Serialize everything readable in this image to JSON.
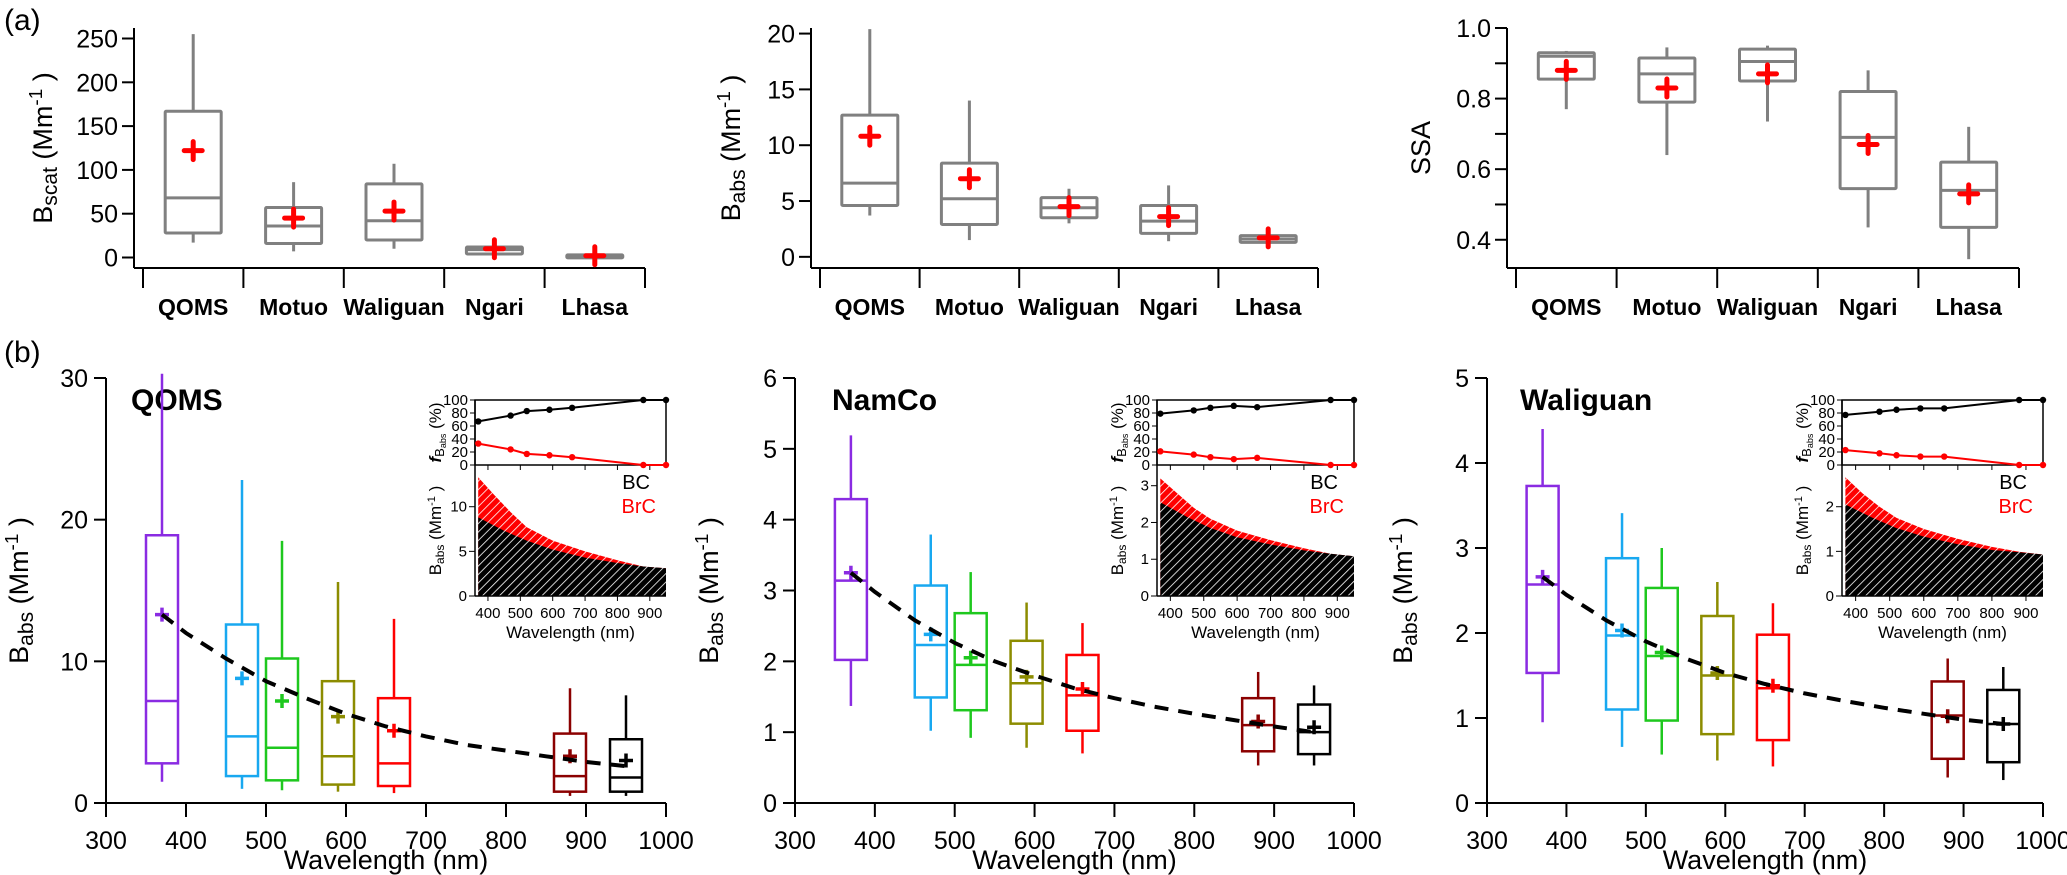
{
  "panel_labels": {
    "a": "(a)",
    "b": "(b)"
  },
  "colors": {
    "box_gray": "#808080",
    "mean_red": "#ff0000",
    "wl_colors": [
      "#8a2be2",
      "#18a8f0",
      "#1ec81e",
      "#8c8c00",
      "#ff0000",
      "#8b0000",
      "#000000"
    ],
    "bc": "#000000",
    "brc": "#ff0000"
  },
  "chart_data": [
    {
      "id": "a1",
      "type": "box",
      "ylabel_main": "B",
      "ylabel_sub": "scat",
      "ylabel_unit": " (Mm",
      "ylabel_sup": "-1",
      "ylabel_close": ")",
      "categories": [
        "QOMS",
        "Motuo",
        "Waliguan",
        "Ngari",
        "Lhasa"
      ],
      "ylim": [
        -12,
        262
      ],
      "yticks": [
        0,
        50,
        100,
        150,
        200,
        250
      ],
      "yticklabels": [
        "0",
        "50",
        "100",
        "150",
        "200",
        "250"
      ],
      "boxes": [
        {
          "min": 17,
          "q1": 28,
          "median": 68,
          "q3": 167,
          "max": 255,
          "mean": 122
        },
        {
          "min": 7,
          "q1": 16,
          "median": 36,
          "q3": 57,
          "max": 86,
          "mean": 45
        },
        {
          "min": 10,
          "q1": 20,
          "median": 42,
          "q3": 84,
          "max": 107,
          "mean": 53
        },
        {
          "min": 2,
          "q1": 4,
          "median": 9,
          "q3": 12,
          "max": 17,
          "mean": 10
        },
        {
          "min": 0.5,
          "q1": 1,
          "median": 2,
          "q3": 3,
          "max": 5,
          "mean": 2
        }
      ]
    },
    {
      "id": "a2",
      "type": "box",
      "ylabel_main": "B",
      "ylabel_sub": "abs",
      "ylabel_unit": " (Mm",
      "ylabel_sup": "-1",
      "ylabel_close": ")",
      "categories": [
        "QOMS",
        "Motuo",
        "Waliguan",
        "Ngari",
        "Lhasa"
      ],
      "ylim": [
        -1,
        20.5
      ],
      "yticks": [
        0,
        5,
        10,
        15,
        20
      ],
      "yticklabels": [
        "0",
        "5",
        "10",
        "15",
        "20"
      ],
      "boxes": [
        {
          "min": 3.7,
          "q1": 4.6,
          "median": 6.6,
          "q3": 12.7,
          "max": 20.4,
          "mean": 10.8
        },
        {
          "min": 1.5,
          "q1": 2.9,
          "median": 5.2,
          "q3": 8.4,
          "max": 14.0,
          "mean": 7.0
        },
        {
          "min": 3.0,
          "q1": 3.5,
          "median": 4.4,
          "q3": 5.3,
          "max": 6.1,
          "mean": 4.5
        },
        {
          "min": 1.4,
          "q1": 2.1,
          "median": 3.2,
          "q3": 4.6,
          "max": 6.4,
          "mean": 3.6
        },
        {
          "min": 1.2,
          "q1": 1.3,
          "median": 1.6,
          "q3": 1.9,
          "max": 2.4,
          "mean": 1.7
        }
      ]
    },
    {
      "id": "a3",
      "type": "box",
      "ylabel_main": "SSA",
      "ylabel_sub": "",
      "ylabel_unit": "",
      "ylabel_sup": "",
      "ylabel_close": "",
      "categories": [
        "QOMS",
        "Motuo",
        "Waliguan",
        "Ngari",
        "Lhasa"
      ],
      "ylim": [
        0.32,
        1.0
      ],
      "yticks": [
        0.4,
        0.5,
        0.6,
        0.7,
        0.8,
        0.9,
        1.0
      ],
      "yticklabels": [
        "0.4",
        "",
        "0.6",
        "",
        "0.8",
        "",
        "1.0"
      ],
      "boxes": [
        {
          "min": 0.77,
          "q1": 0.855,
          "median": 0.92,
          "q3": 0.93,
          "max": 0.935,
          "mean": 0.88
        },
        {
          "min": 0.64,
          "q1": 0.79,
          "median": 0.87,
          "q3": 0.915,
          "max": 0.945,
          "mean": 0.83
        },
        {
          "min": 0.735,
          "q1": 0.85,
          "median": 0.905,
          "q3": 0.94,
          "max": 0.95,
          "mean": 0.87
        },
        {
          "min": 0.435,
          "q1": 0.545,
          "median": 0.69,
          "q3": 0.82,
          "max": 0.88,
          "mean": 0.67
        },
        {
          "min": 0.345,
          "q1": 0.435,
          "median": 0.54,
          "q3": 0.62,
          "max": 0.72,
          "mean": 0.53
        }
      ]
    },
    {
      "id": "b1",
      "type": "box",
      "site": "QOMS",
      "xlabel": "Wavelength (nm)",
      "ylabel_main": "B",
      "ylabel_sub": "abs",
      "ylabel_unit": " (Mm",
      "ylabel_sup": "-1",
      "ylabel_close": ")",
      "xlim": [
        300,
        1000
      ],
      "xticks": [
        300,
        400,
        500,
        600,
        700,
        800,
        900,
        1000
      ],
      "ylim": [
        0,
        30
      ],
      "yticks": [
        0,
        10,
        20,
        30
      ],
      "wavelengths": [
        370,
        470,
        520,
        590,
        660,
        880,
        950
      ],
      "boxes": [
        {
          "min": 1.5,
          "q1": 2.8,
          "median": 7.2,
          "q3": 18.9,
          "max": 30.3,
          "mean": 13.3
        },
        {
          "min": 1.0,
          "q1": 1.9,
          "median": 4.7,
          "q3": 12.6,
          "max": 22.8,
          "mean": 8.8
        },
        {
          "min": 0.9,
          "q1": 1.6,
          "median": 3.9,
          "q3": 10.2,
          "max": 18.5,
          "mean": 7.2
        },
        {
          "min": 0.8,
          "q1": 1.3,
          "median": 3.3,
          "q3": 8.6,
          "max": 15.6,
          "mean": 6.1
        },
        {
          "min": 0.7,
          "q1": 1.2,
          "median": 2.8,
          "q3": 7.4,
          "max": 13.0,
          "mean": 5.1
        },
        {
          "min": 0.5,
          "q1": 0.8,
          "median": 1.9,
          "q3": 4.9,
          "max": 8.1,
          "mean": 3.3
        },
        {
          "min": 0.5,
          "q1": 0.8,
          "median": 1.8,
          "q3": 4.5,
          "max": 7.6,
          "mean": 3.0
        }
      ],
      "fit_curve": [
        [
          370,
          13.3
        ],
        [
          400,
          12.0
        ],
        [
          450,
          10.2
        ],
        [
          500,
          8.6
        ],
        [
          550,
          7.4
        ],
        [
          600,
          6.3
        ],
        [
          650,
          5.4
        ],
        [
          700,
          4.7
        ],
        [
          750,
          4.1
        ],
        [
          800,
          3.7
        ],
        [
          850,
          3.3
        ],
        [
          900,
          2.9
        ],
        [
          950,
          2.6
        ]
      ],
      "inset": {
        "xlim": [
          360,
          950
        ],
        "xticks": [
          400,
          500,
          600,
          700,
          800,
          900
        ],
        "xlabel": "Wavelength (nm)",
        "f_ylabel": "f",
        "f_ylabel_sub": "B",
        "f_ylabel_subsub": "abs",
        "f_ylabel_unit": " (%)",
        "f_ylim": [
          0,
          100
        ],
        "f_yticks": [
          0,
          20,
          40,
          60,
          80,
          100
        ],
        "f_bc": [
          [
            370,
            67
          ],
          [
            470,
            76
          ],
          [
            520,
            83
          ],
          [
            590,
            85
          ],
          [
            660,
            88
          ],
          [
            880,
            100
          ],
          [
            950,
            100
          ]
        ],
        "f_brc": [
          [
            370,
            33
          ],
          [
            470,
            24
          ],
          [
            520,
            17
          ],
          [
            590,
            15
          ],
          [
            660,
            12
          ],
          [
            880,
            0
          ],
          [
            950,
            0
          ]
        ],
        "b_ylim": [
          0,
          14
        ],
        "b_yticks": [
          0,
          5,
          10
        ],
        "bc_curve": [
          [
            370,
            8.8
          ],
          [
            450,
            7.3
          ],
          [
            520,
            6.2
          ],
          [
            600,
            5.2
          ],
          [
            700,
            4.3
          ],
          [
            800,
            3.7
          ],
          [
            880,
            3.3
          ],
          [
            950,
            3.1
          ]
        ],
        "total_curve": [
          [
            370,
            13.3
          ],
          [
            420,
            11.3
          ],
          [
            470,
            9.4
          ],
          [
            520,
            7.7
          ],
          [
            600,
            6.2
          ],
          [
            700,
            5.0
          ],
          [
            800,
            4.0
          ],
          [
            880,
            3.3
          ],
          [
            950,
            3.1
          ]
        ],
        "legend_bc": "BC",
        "legend_brc": "BrC"
      }
    },
    {
      "id": "b2",
      "type": "box",
      "site": "NamCo",
      "xlabel": "Wavelength (nm)",
      "ylabel_main": "B",
      "ylabel_sub": "abs",
      "ylabel_unit": " (Mm",
      "ylabel_sup": "-1",
      "ylabel_close": ")",
      "xlim": [
        300,
        1000
      ],
      "xticks": [
        300,
        400,
        500,
        600,
        700,
        800,
        900,
        1000
      ],
      "ylim": [
        0,
        6
      ],
      "yticks": [
        0,
        1,
        2,
        3,
        4,
        5,
        6
      ],
      "wavelengths": [
        370,
        470,
        520,
        590,
        660,
        880,
        950
      ],
      "boxes": [
        {
          "min": 1.37,
          "q1": 2.02,
          "median": 3.14,
          "q3": 4.29,
          "max": 5.19,
          "mean": 3.25
        },
        {
          "min": 1.02,
          "q1": 1.49,
          "median": 2.23,
          "q3": 3.07,
          "max": 3.79,
          "mean": 2.38
        },
        {
          "min": 0.92,
          "q1": 1.31,
          "median": 1.95,
          "q3": 2.68,
          "max": 3.26,
          "mean": 2.05
        },
        {
          "min": 0.78,
          "q1": 1.12,
          "median": 1.69,
          "q3": 2.29,
          "max": 2.83,
          "mean": 1.78
        },
        {
          "min": 0.7,
          "q1": 1.02,
          "median": 1.52,
          "q3": 2.09,
          "max": 2.54,
          "mean": 1.61
        },
        {
          "min": 0.53,
          "q1": 0.73,
          "median": 1.1,
          "q3": 1.48,
          "max": 1.85,
          "mean": 1.15
        },
        {
          "min": 0.53,
          "q1": 0.69,
          "median": 1.0,
          "q3": 1.39,
          "max": 1.66,
          "mean": 1.07
        }
      ],
      "fit_curve": [
        [
          370,
          3.25
        ],
        [
          400,
          2.98
        ],
        [
          450,
          2.58
        ],
        [
          500,
          2.26
        ],
        [
          550,
          2.0
        ],
        [
          600,
          1.8
        ],
        [
          650,
          1.62
        ],
        [
          700,
          1.48
        ],
        [
          750,
          1.36
        ],
        [
          800,
          1.26
        ],
        [
          850,
          1.17
        ],
        [
          900,
          1.08
        ],
        [
          950,
          1.0
        ]
      ],
      "inset": {
        "xlim": [
          360,
          950
        ],
        "xticks": [
          400,
          500,
          600,
          700,
          800,
          900
        ],
        "xlabel": "Wavelength (nm)",
        "f_ylabel": "f",
        "f_ylabel_sub": "B",
        "f_ylabel_subsub": "abs",
        "f_ylabel_unit": " (%)",
        "f_ylim": [
          0,
          100
        ],
        "f_yticks": [
          0,
          20,
          40,
          60,
          80,
          100
        ],
        "f_bc": [
          [
            370,
            79
          ],
          [
            470,
            84
          ],
          [
            520,
            88
          ],
          [
            590,
            91
          ],
          [
            660,
            89
          ],
          [
            880,
            100
          ],
          [
            950,
            100
          ]
        ],
        "f_brc": [
          [
            370,
            21
          ],
          [
            470,
            16
          ],
          [
            520,
            12
          ],
          [
            590,
            9
          ],
          [
            660,
            11
          ],
          [
            880,
            0
          ],
          [
            950,
            0
          ]
        ],
        "b_ylim": [
          0,
          3.4
        ],
        "b_yticks": [
          0,
          1,
          2,
          3
        ],
        "bc_curve": [
          [
            370,
            2.55
          ],
          [
            450,
            2.15
          ],
          [
            520,
            1.85
          ],
          [
            600,
            1.6
          ],
          [
            700,
            1.4
          ],
          [
            800,
            1.24
          ],
          [
            880,
            1.15
          ],
          [
            950,
            1.08
          ]
        ],
        "total_curve": [
          [
            370,
            3.2
          ],
          [
            420,
            2.8
          ],
          [
            470,
            2.4
          ],
          [
            520,
            2.1
          ],
          [
            600,
            1.78
          ],
          [
            700,
            1.52
          ],
          [
            800,
            1.3
          ],
          [
            880,
            1.15
          ],
          [
            950,
            1.08
          ]
        ],
        "legend_bc": "BC",
        "legend_brc": "BrC"
      }
    },
    {
      "id": "b3",
      "type": "box",
      "site": "Waliguan",
      "xlabel": "Wavelength (nm)",
      "ylabel_main": "B",
      "ylabel_sub": "abs",
      "ylabel_unit": " (Mm",
      "ylabel_sup": "-1",
      "ylabel_close": ")",
      "xlim": [
        300,
        1000
      ],
      "xticks": [
        300,
        400,
        500,
        600,
        700,
        800,
        900,
        1000
      ],
      "ylim": [
        0,
        5
      ],
      "yticks": [
        0,
        1,
        2,
        3,
        4,
        5
      ],
      "wavelengths": [
        370,
        470,
        520,
        590,
        660,
        880,
        950
      ],
      "boxes": [
        {
          "min": 0.95,
          "q1": 1.53,
          "median": 2.57,
          "q3": 3.73,
          "max": 4.4,
          "mean": 2.66
        },
        {
          "min": 0.66,
          "q1": 1.1,
          "median": 1.97,
          "q3": 2.88,
          "max": 3.41,
          "mean": 2.03
        },
        {
          "min": 0.57,
          "q1": 0.97,
          "median": 1.73,
          "q3": 2.53,
          "max": 3.0,
          "mean": 1.77
        },
        {
          "min": 0.5,
          "q1": 0.81,
          "median": 1.5,
          "q3": 2.2,
          "max": 2.6,
          "mean": 1.53
        },
        {
          "min": 0.43,
          "q1": 0.74,
          "median": 1.35,
          "q3": 1.98,
          "max": 2.35,
          "mean": 1.38
        },
        {
          "min": 0.3,
          "q1": 0.52,
          "median": 1.03,
          "q3": 1.43,
          "max": 1.7,
          "mean": 1.02
        },
        {
          "min": 0.27,
          "q1": 0.48,
          "median": 0.93,
          "q3": 1.33,
          "max": 1.6,
          "mean": 0.93
        }
      ],
      "fit_curve": [
        [
          370,
          2.66
        ],
        [
          400,
          2.45
        ],
        [
          450,
          2.15
        ],
        [
          500,
          1.9
        ],
        [
          550,
          1.7
        ],
        [
          600,
          1.53
        ],
        [
          650,
          1.4
        ],
        [
          700,
          1.29
        ],
        [
          750,
          1.2
        ],
        [
          800,
          1.12
        ],
        [
          850,
          1.05
        ],
        [
          900,
          0.98
        ],
        [
          950,
          0.93
        ]
      ],
      "inset": {
        "xlim": [
          360,
          950
        ],
        "xticks": [
          400,
          500,
          600,
          700,
          800,
          900
        ],
        "xlabel": "Wavelength (nm)",
        "f_ylabel": "f",
        "f_ylabel_sub": "B",
        "f_ylabel_subsub": "abs",
        "f_ylabel_unit": " (%)",
        "f_ylim": [
          0,
          100
        ],
        "f_yticks": [
          0,
          20,
          40,
          60,
          80,
          100
        ],
        "f_bc": [
          [
            370,
            77
          ],
          [
            470,
            82
          ],
          [
            520,
            85
          ],
          [
            590,
            87
          ],
          [
            660,
            87
          ],
          [
            880,
            100
          ],
          [
            950,
            100
          ]
        ],
        "f_brc": [
          [
            370,
            23
          ],
          [
            470,
            18
          ],
          [
            520,
            15
          ],
          [
            590,
            13
          ],
          [
            660,
            13
          ],
          [
            880,
            0
          ],
          [
            950,
            0
          ]
        ],
        "b_ylim": [
          0,
          2.8
        ],
        "b_yticks": [
          0,
          1,
          2
        ],
        "bc_curve": [
          [
            370,
            2.05
          ],
          [
            450,
            1.75
          ],
          [
            520,
            1.52
          ],
          [
            600,
            1.33
          ],
          [
            700,
            1.16
          ],
          [
            800,
            1.03
          ],
          [
            880,
            0.98
          ],
          [
            950,
            0.93
          ]
        ],
        "total_curve": [
          [
            370,
            2.66
          ],
          [
            420,
            2.3
          ],
          [
            470,
            2.0
          ],
          [
            520,
            1.75
          ],
          [
            600,
            1.5
          ],
          [
            700,
            1.28
          ],
          [
            800,
            1.1
          ],
          [
            880,
            0.99
          ],
          [
            950,
            0.93
          ]
        ],
        "legend_bc": "BC",
        "legend_brc": "BrC"
      }
    }
  ]
}
